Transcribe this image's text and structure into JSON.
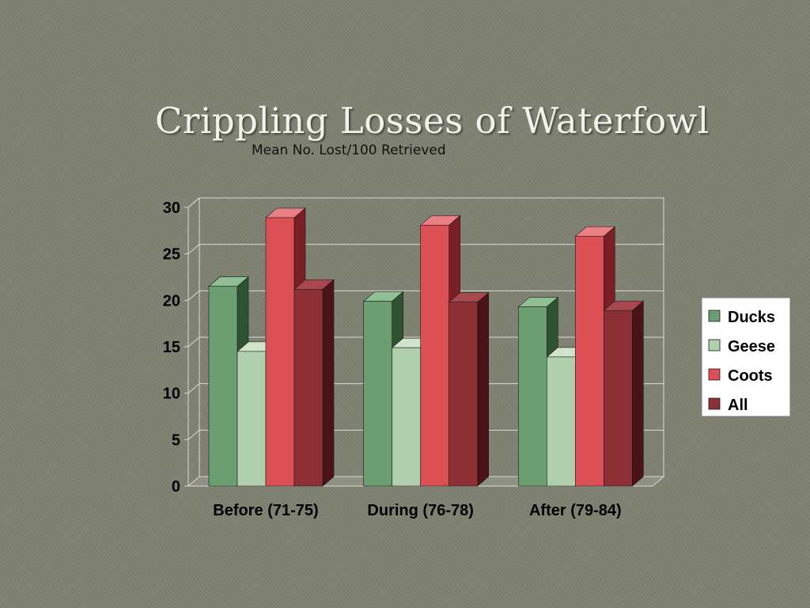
{
  "slide": {
    "title": "Crippling Losses of Waterfowl"
  },
  "chart_data": {
    "type": "bar",
    "title": "Crippling Losses of Waterfowl",
    "subtitle": "Mean No. Lost/100 Retrieved",
    "categories": [
      "Before (71-75)",
      "During (76-78)",
      "After (79-84)"
    ],
    "series": [
      {
        "name": "Ducks",
        "values": [
          21.5,
          19.9,
          19.3
        ],
        "color": "#6b9e71",
        "side": "#2f5233",
        "top": "#8fbf93"
      },
      {
        "name": "Geese",
        "values": [
          14.5,
          14.9,
          13.9
        ],
        "color": "#b0cfac",
        "side": "#6f8f6b",
        "top": "#cfe4cb"
      },
      {
        "name": "Coots",
        "values": [
          28.9,
          28.1,
          26.9
        ],
        "color": "#db4f55",
        "side": "#7a1f24",
        "top": "#e98085"
      },
      {
        "name": "All",
        "values": [
          21.2,
          19.8,
          18.9
        ],
        "color": "#8c3036",
        "side": "#4a1317",
        "top": "#a8484e"
      }
    ],
    "ylim": [
      0,
      30
    ],
    "yticks": [
      0,
      5,
      10,
      15,
      20,
      25,
      30
    ],
    "xlabel": "",
    "ylabel": "",
    "grid": true,
    "legend_position": "right"
  }
}
